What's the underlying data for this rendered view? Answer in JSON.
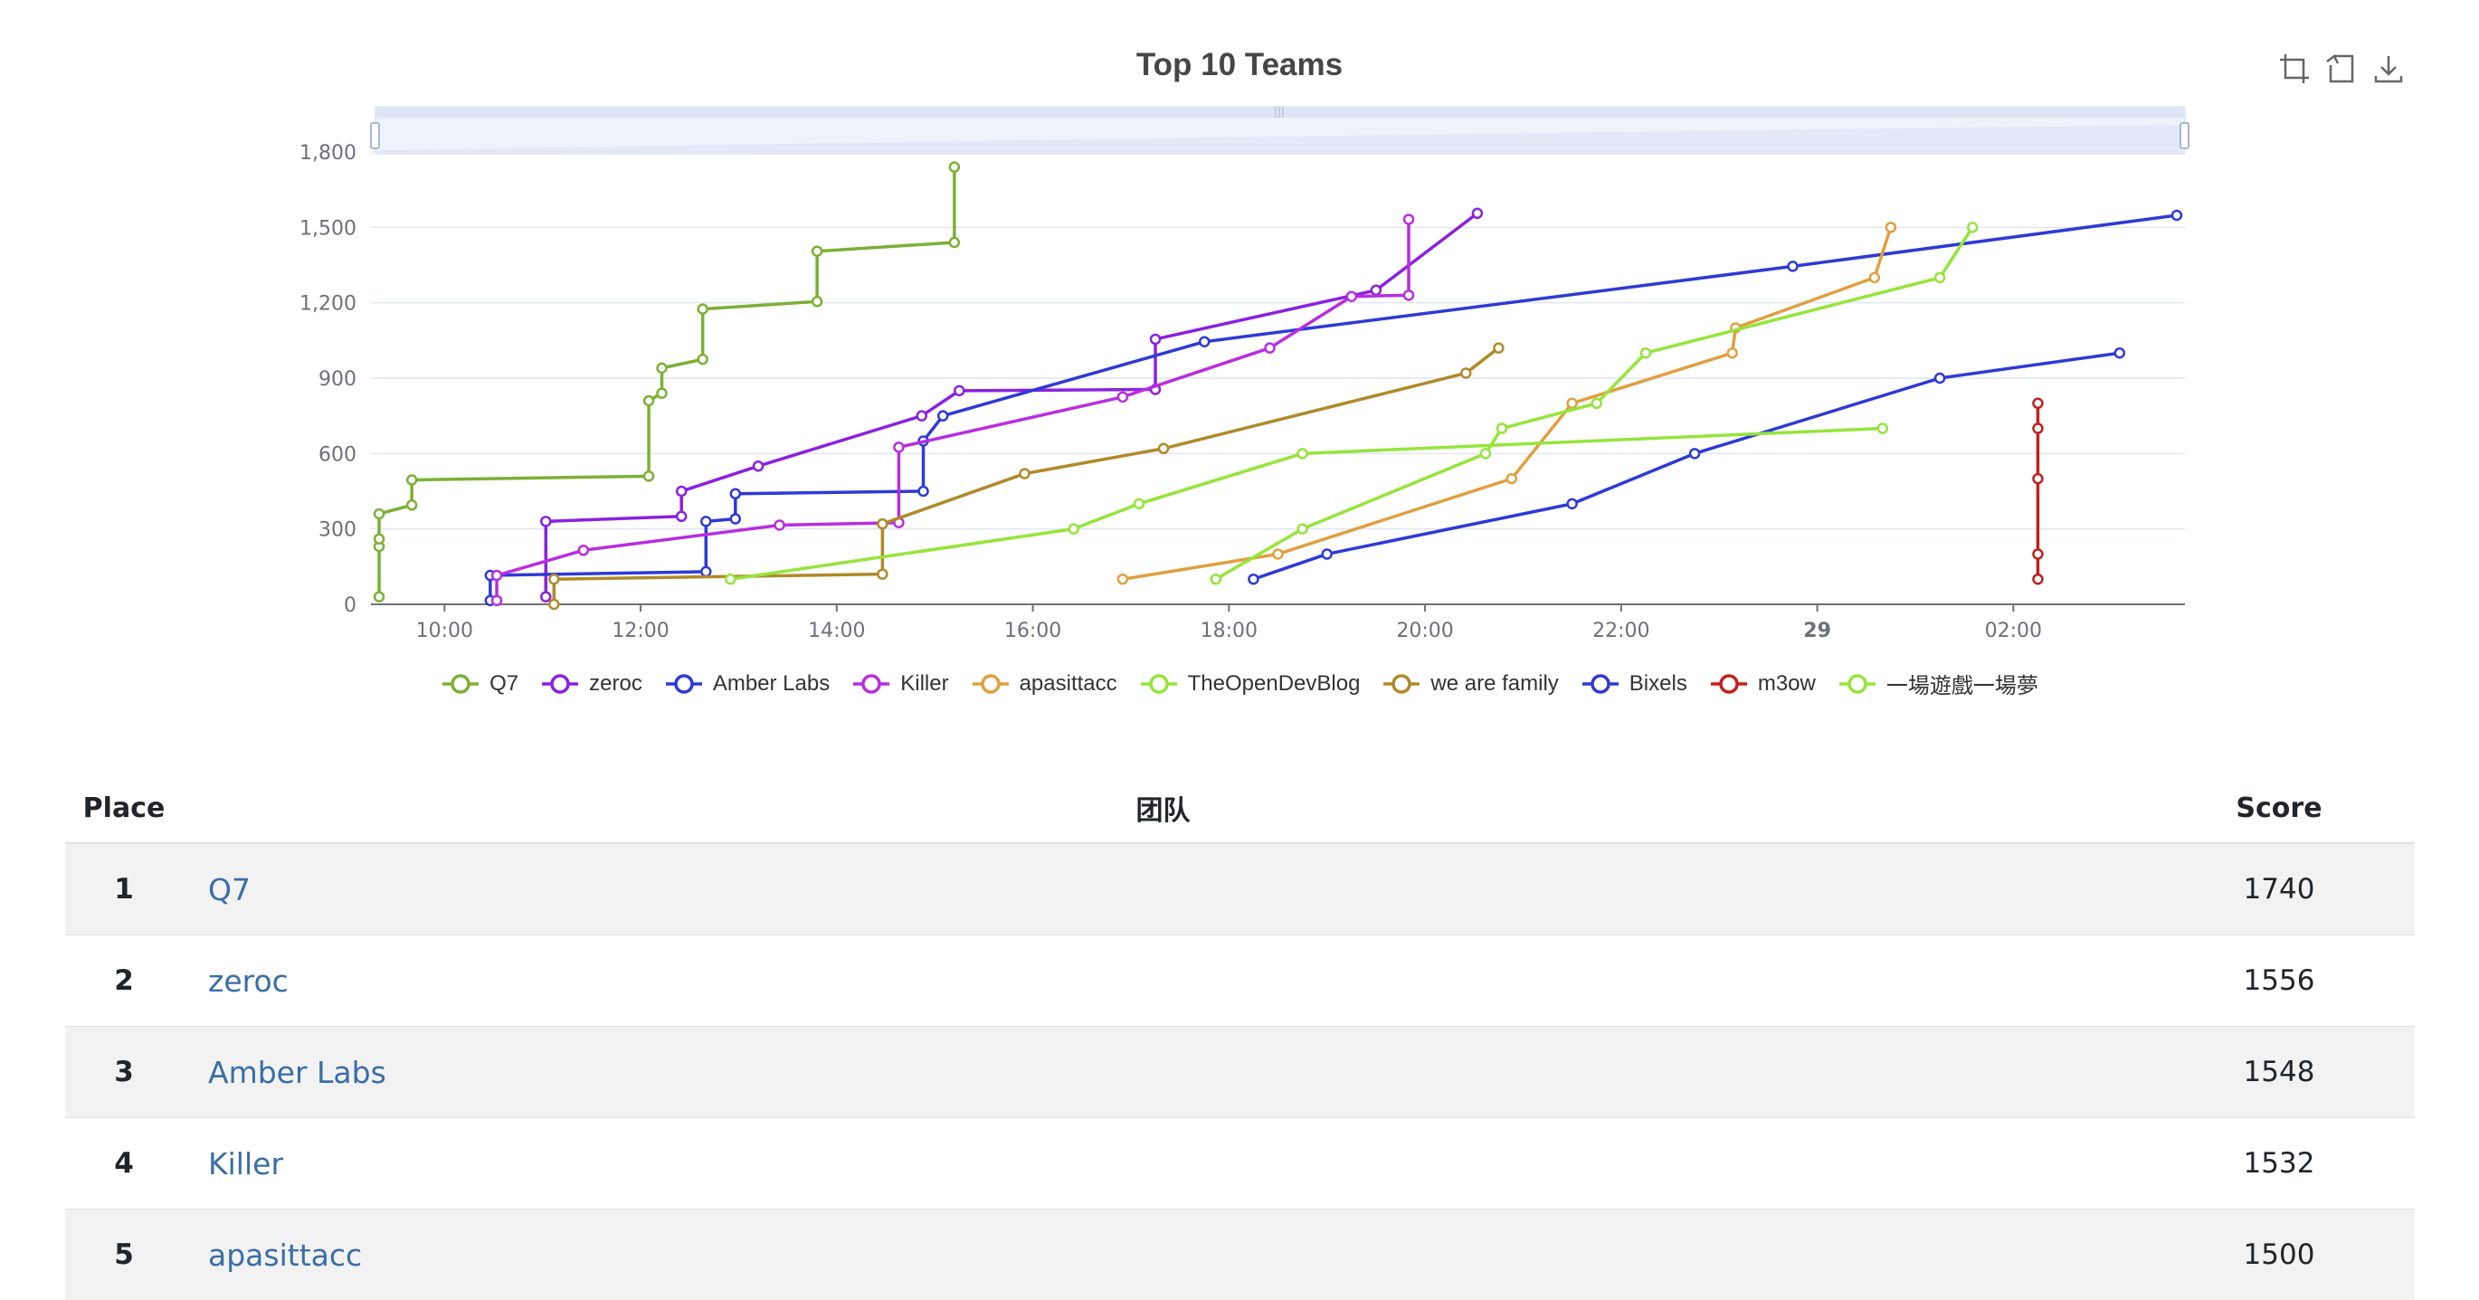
{
  "chart_data": {
    "type": "line",
    "title": "Top 10 Teams",
    "x_axis": {
      "type": "time",
      "range": [
        "2023-10-28 09:15",
        "2023-10-29 03:45"
      ],
      "tick_labels": [
        {
          "t": "2023-10-28 10:00",
          "label": "10:00",
          "bold": false
        },
        {
          "t": "2023-10-28 12:00",
          "label": "12:00",
          "bold": false
        },
        {
          "t": "2023-10-28 14:00",
          "label": "14:00",
          "bold": false
        },
        {
          "t": "2023-10-28 16:00",
          "label": "16:00",
          "bold": false
        },
        {
          "t": "2023-10-28 18:00",
          "label": "18:00",
          "bold": false
        },
        {
          "t": "2023-10-28 20:00",
          "label": "20:00",
          "bold": false
        },
        {
          "t": "2023-10-28 22:00",
          "label": "22:00",
          "bold": false
        },
        {
          "t": "2023-10-29 00:00",
          "label": "29",
          "bold": true
        },
        {
          "t": "2023-10-29 02:00",
          "label": "02:00",
          "bold": false
        }
      ]
    },
    "y_axis": {
      "ylim": [
        0,
        1800
      ],
      "ticks": [
        0,
        300,
        600,
        900,
        1200,
        1500,
        1800
      ],
      "tick_labels": [
        "0",
        "300",
        "600",
        "900",
        "1,200",
        "1,500",
        "1,800"
      ]
    },
    "grid": true,
    "legend_position": "bottom",
    "data_zoom": "top slider",
    "series": [
      {
        "name": "Q7",
        "color": "#7cb034",
        "points": [
          [
            "2023-10-28 09:20",
            30
          ],
          [
            "2023-10-28 09:20",
            230
          ],
          [
            "2023-10-28 09:20",
            260
          ],
          [
            "2023-10-28 09:20",
            360
          ],
          [
            "2023-10-28 09:40",
            395
          ],
          [
            "2023-10-28 09:40",
            495
          ],
          [
            "2023-10-28 12:05",
            510
          ],
          [
            "2023-10-28 12:05",
            810
          ],
          [
            "2023-10-28 12:13",
            840
          ],
          [
            "2023-10-28 12:13",
            940
          ],
          [
            "2023-10-28 12:38",
            975
          ],
          [
            "2023-10-28 12:38",
            1175
          ],
          [
            "2023-10-28 13:48",
            1205
          ],
          [
            "2023-10-28 13:48",
            1405
          ],
          [
            "2023-10-28 15:12",
            1440
          ],
          [
            "2023-10-28 15:12",
            1740
          ]
        ]
      },
      {
        "name": "zeroc",
        "color": "#8a21e0",
        "points": [
          [
            "2023-10-28 11:02",
            30
          ],
          [
            "2023-10-28 11:02",
            330
          ],
          [
            "2023-10-28 12:25",
            350
          ],
          [
            "2023-10-28 12:25",
            450
          ],
          [
            "2023-10-28 13:12",
            550
          ],
          [
            "2023-10-28 14:52",
            750
          ],
          [
            "2023-10-28 15:15",
            850
          ],
          [
            "2023-10-28 17:15",
            855
          ],
          [
            "2023-10-28 17:15",
            1055
          ],
          [
            "2023-10-28 19:30",
            1250
          ],
          [
            "2023-10-28 20:32",
            1556
          ]
        ]
      },
      {
        "name": "Amber Labs",
        "color": "#2e3ad6",
        "points": [
          [
            "2023-10-28 10:28",
            15
          ],
          [
            "2023-10-28 10:28",
            115
          ],
          [
            "2023-10-28 12:40",
            130
          ],
          [
            "2023-10-28 12:40",
            330
          ],
          [
            "2023-10-28 12:58",
            340
          ],
          [
            "2023-10-28 12:58",
            440
          ],
          [
            "2023-10-28 14:53",
            450
          ],
          [
            "2023-10-28 14:53",
            650
          ],
          [
            "2023-10-28 15:05",
            750
          ],
          [
            "2023-10-28 17:45",
            1045
          ],
          [
            "2023-10-28 23:45",
            1345
          ],
          [
            "2023-10-29 03:40",
            1548
          ]
        ]
      },
      {
        "name": "Killer",
        "color": "#b82ee0",
        "points": [
          [
            "2023-10-28 10:32",
            15
          ],
          [
            "2023-10-28 10:32",
            115
          ],
          [
            "2023-10-28 11:25",
            215
          ],
          [
            "2023-10-28 13:25",
            315
          ],
          [
            "2023-10-28 14:38",
            325
          ],
          [
            "2023-10-28 14:38",
            625
          ],
          [
            "2023-10-28 16:55",
            825
          ],
          [
            "2023-10-28 18:25",
            1020
          ],
          [
            "2023-10-28 19:15",
            1225
          ],
          [
            "2023-10-28 19:50",
            1230
          ],
          [
            "2023-10-28 19:50",
            1532
          ]
        ]
      },
      {
        "name": "apasittacc",
        "color": "#e0a040",
        "points": [
          [
            "2023-10-28 16:55",
            100
          ],
          [
            "2023-10-28 18:30",
            200
          ],
          [
            "2023-10-28 20:53",
            500
          ],
          [
            "2023-10-28 21:30",
            800
          ],
          [
            "2023-10-28 23:08",
            1000
          ],
          [
            "2023-10-28 23:10",
            1100
          ],
          [
            "2023-10-29 00:35",
            1300
          ],
          [
            "2023-10-29 00:45",
            1500
          ]
        ]
      },
      {
        "name": "TheOpenDevBlog",
        "color": "#95e53a",
        "points": [
          [
            "2023-10-28 17:52",
            100
          ],
          [
            "2023-10-28 18:45",
            300
          ],
          [
            "2023-10-28 20:37",
            600
          ],
          [
            "2023-10-28 20:47",
            700
          ],
          [
            "2023-10-28 21:45",
            800
          ],
          [
            "2023-10-28 22:15",
            1000
          ],
          [
            "2023-10-29 01:15",
            1300
          ],
          [
            "2023-10-29 01:35",
            1500
          ]
        ]
      },
      {
        "name": "we are family",
        "color": "#b08a2a",
        "points": [
          [
            "2023-10-28 11:07",
            0
          ],
          [
            "2023-10-28 11:07",
            100
          ],
          [
            "2023-10-28 14:28",
            120
          ],
          [
            "2023-10-28 14:28",
            320
          ],
          [
            "2023-10-28 15:55",
            520
          ],
          [
            "2023-10-28 17:20",
            620
          ],
          [
            "2023-10-28 20:25",
            920
          ],
          [
            "2023-10-28 20:45",
            1020
          ]
        ]
      },
      {
        "name": "Bixels",
        "color": "#2e3ad6",
        "points": [
          [
            "2023-10-28 18:15",
            100
          ],
          [
            "2023-10-28 19:00",
            200
          ],
          [
            "2023-10-28 21:30",
            400
          ],
          [
            "2023-10-28 22:45",
            600
          ],
          [
            "2023-10-29 01:15",
            900
          ],
          [
            "2023-10-29 03:05",
            1000
          ]
        ]
      },
      {
        "name": "m3ow",
        "color": "#c0201e",
        "points": [
          [
            "2023-10-29 02:15",
            100
          ],
          [
            "2023-10-29 02:15",
            200
          ],
          [
            "2023-10-29 02:15",
            500
          ],
          [
            "2023-10-29 02:15",
            700
          ],
          [
            "2023-10-29 02:15",
            800
          ]
        ]
      },
      {
        "name": "一場遊戲一場夢",
        "color": "#95e53a",
        "points": [
          [
            "2023-10-28 12:55",
            100
          ],
          [
            "2023-10-28 16:25",
            300
          ],
          [
            "2023-10-28 17:05",
            400
          ],
          [
            "2023-10-28 18:45",
            600
          ],
          [
            "2023-10-29 00:40",
            700
          ]
        ]
      }
    ]
  },
  "table": {
    "headers": {
      "place": "Place",
      "team": "团队",
      "score": "Score"
    },
    "rows": [
      {
        "place": "1",
        "team": "Q7",
        "score": "1740"
      },
      {
        "place": "2",
        "team": "zeroc",
        "score": "1556"
      },
      {
        "place": "3",
        "team": "Amber Labs",
        "score": "1548"
      },
      {
        "place": "4",
        "team": "Killer",
        "score": "1532"
      },
      {
        "place": "5",
        "team": "apasittacc",
        "score": "1500"
      }
    ]
  },
  "toolbox": {
    "icons": [
      "zoom-select-icon",
      "zoom-reset-icon",
      "save-image-icon"
    ]
  }
}
